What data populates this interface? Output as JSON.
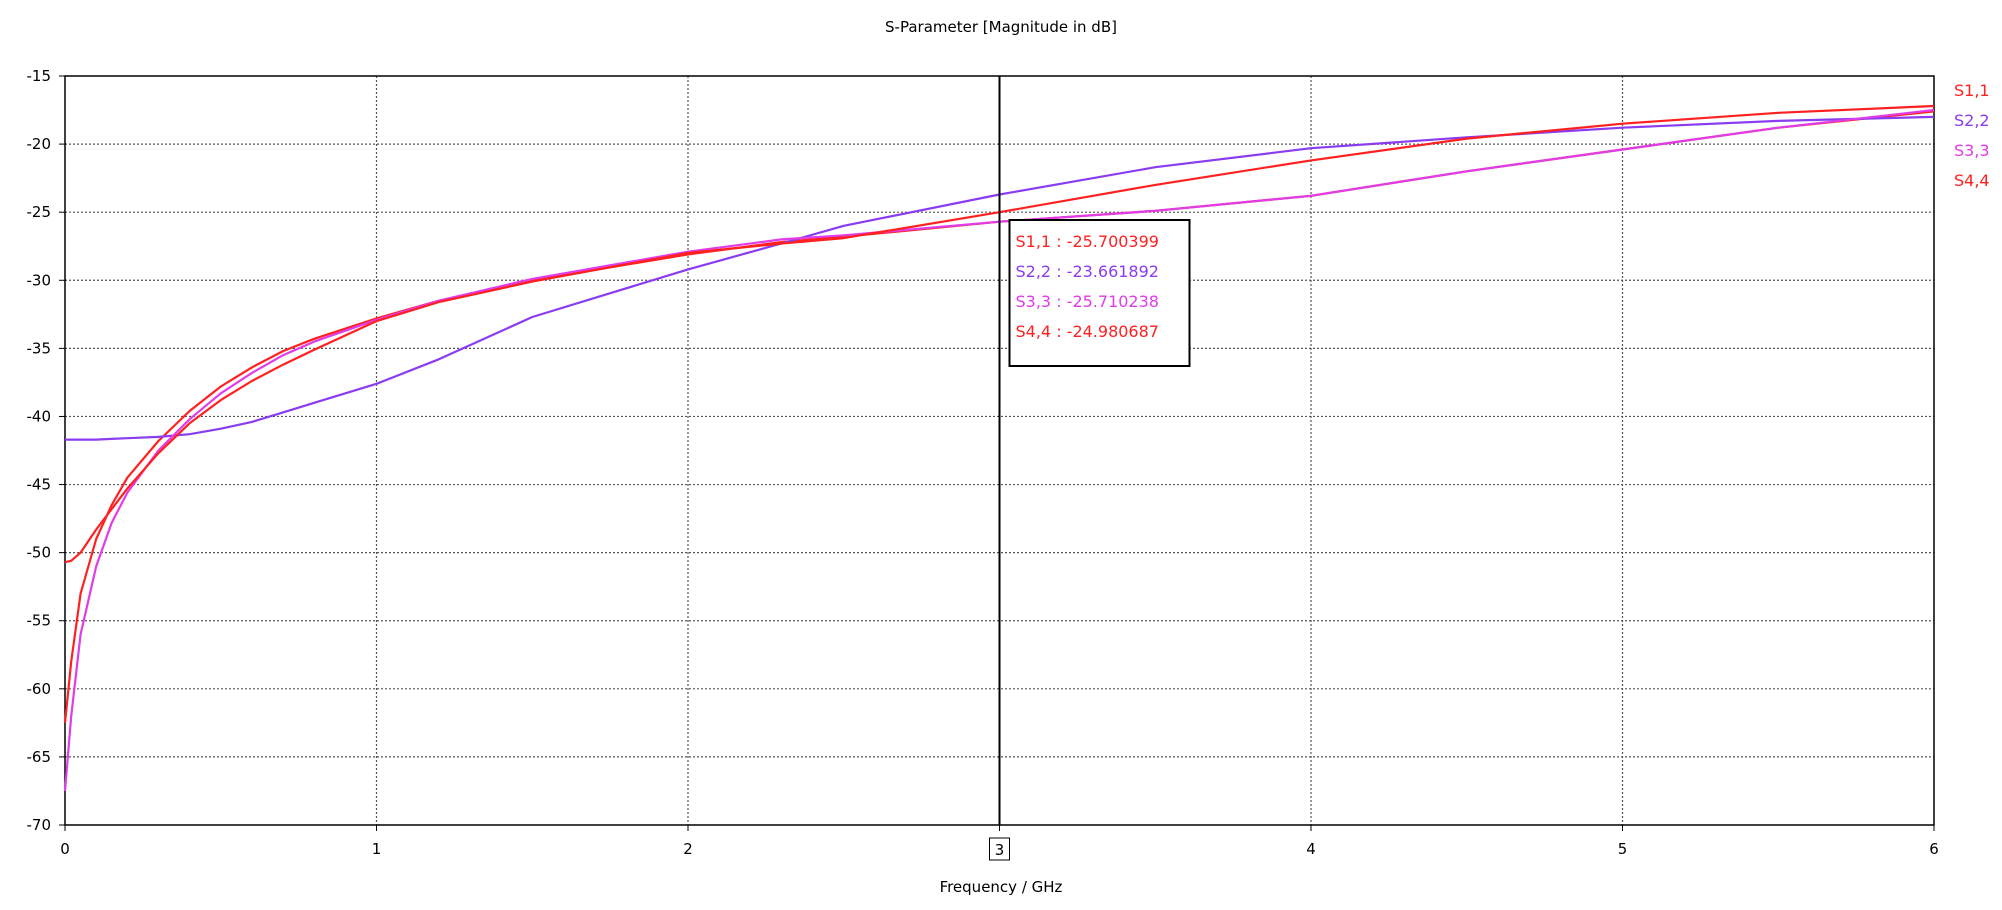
{
  "chart_data": {
    "type": "line",
    "title": "S-Parameter [Magnitude in dB]",
    "xlabel": "Frequency / GHz",
    "ylabel": "",
    "xlim": [
      0,
      6
    ],
    "ylim": [
      -70,
      -15
    ],
    "xticks": [
      0,
      1,
      2,
      3,
      4,
      5,
      6
    ],
    "yticks": [
      -15,
      -20,
      -25,
      -30,
      -35,
      -40,
      -45,
      -50,
      -55,
      -60,
      -65,
      -70
    ],
    "grid": true,
    "legend_position": "right",
    "x": [
      0,
      0.02,
      0.05,
      0.1,
      0.15,
      0.2,
      0.3,
      0.4,
      0.5,
      0.6,
      0.7,
      0.8,
      1.0,
      1.2,
      1.5,
      2.0,
      2.3,
      2.5,
      3.0,
      3.5,
      4.0,
      4.5,
      5.0,
      5.5,
      6.0
    ],
    "series": [
      {
        "name": "S1,1",
        "color": "#ff2020",
        "values": [
          -62.5,
          -58.0,
          -53.0,
          -49.0,
          -46.5,
          -44.5,
          -41.8,
          -39.6,
          -37.8,
          -36.4,
          -35.2,
          -34.3,
          -32.8,
          -31.5,
          -30.0,
          -28.1,
          -27.2,
          -26.8,
          -25.7,
          -24.9,
          -23.8,
          -22.0,
          -20.4,
          -18.8,
          -17.6
        ]
      },
      {
        "name": "S2,2",
        "color": "#8a3cf0",
        "values": [
          -41.7,
          -41.7,
          -41.7,
          -41.7,
          -41.65,
          -41.6,
          -41.5,
          -41.3,
          -40.9,
          -40.4,
          -39.7,
          -39.0,
          -37.6,
          -35.8,
          -32.7,
          -29.2,
          -27.3,
          -26.0,
          -23.7,
          -21.7,
          -20.3,
          -19.5,
          -18.8,
          -18.3,
          -18.0
        ]
      },
      {
        "name": "S3,3",
        "color": "#e03ce8",
        "values": [
          -67.5,
          -62.0,
          -56.0,
          -51.0,
          -47.8,
          -45.6,
          -42.5,
          -40.2,
          -38.3,
          -36.8,
          -35.5,
          -34.5,
          -32.9,
          -31.5,
          -29.9,
          -27.9,
          -27.0,
          -26.7,
          -25.7,
          -24.9,
          -23.8,
          -22.0,
          -20.4,
          -18.8,
          -17.5
        ]
      },
      {
        "name": "S4,4",
        "color": "#ff2020",
        "values": [
          -50.7,
          -50.6,
          -50.0,
          -48.3,
          -46.8,
          -45.3,
          -42.7,
          -40.5,
          -38.8,
          -37.4,
          -36.2,
          -35.1,
          -33.0,
          -31.6,
          -30.1,
          -28.0,
          -27.3,
          -26.9,
          -25.0,
          -23.0,
          -21.2,
          -19.6,
          -18.5,
          -17.7,
          -17.2
        ]
      }
    ],
    "marker": {
      "x_label": "3",
      "entries": [
        {
          "label": "S1,1 : -25.700399",
          "color": "#ff2020"
        },
        {
          "label": "S2,2 : -23.661892",
          "color": "#8a3cf0"
        },
        {
          "label": "S3,3 : -25.710238",
          "color": "#e03ce8"
        },
        {
          "label": "S4,4 : -24.980687",
          "color": "#ff2020"
        }
      ]
    }
  }
}
